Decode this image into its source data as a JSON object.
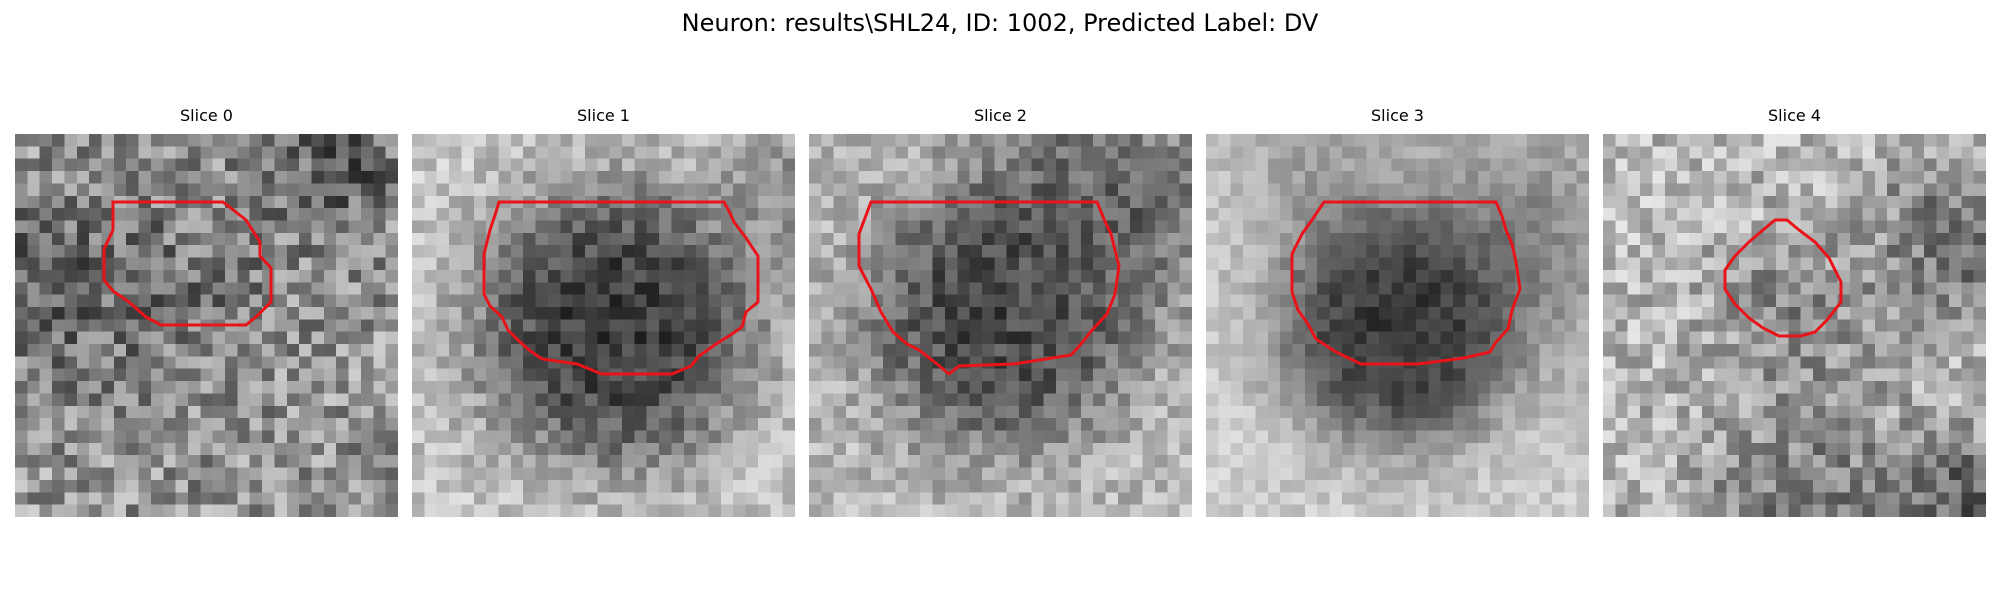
{
  "figure": {
    "title": "Neuron: results\\SHL24, ID: 1002, Predicted Label: DV",
    "contour_color": "#e8141a"
  },
  "panels": [
    {
      "title": "Slice 0"
    },
    {
      "title": "Slice 1"
    },
    {
      "title": "Slice 2"
    },
    {
      "title": "Slice 3"
    },
    {
      "title": "Slice 4"
    }
  ]
}
